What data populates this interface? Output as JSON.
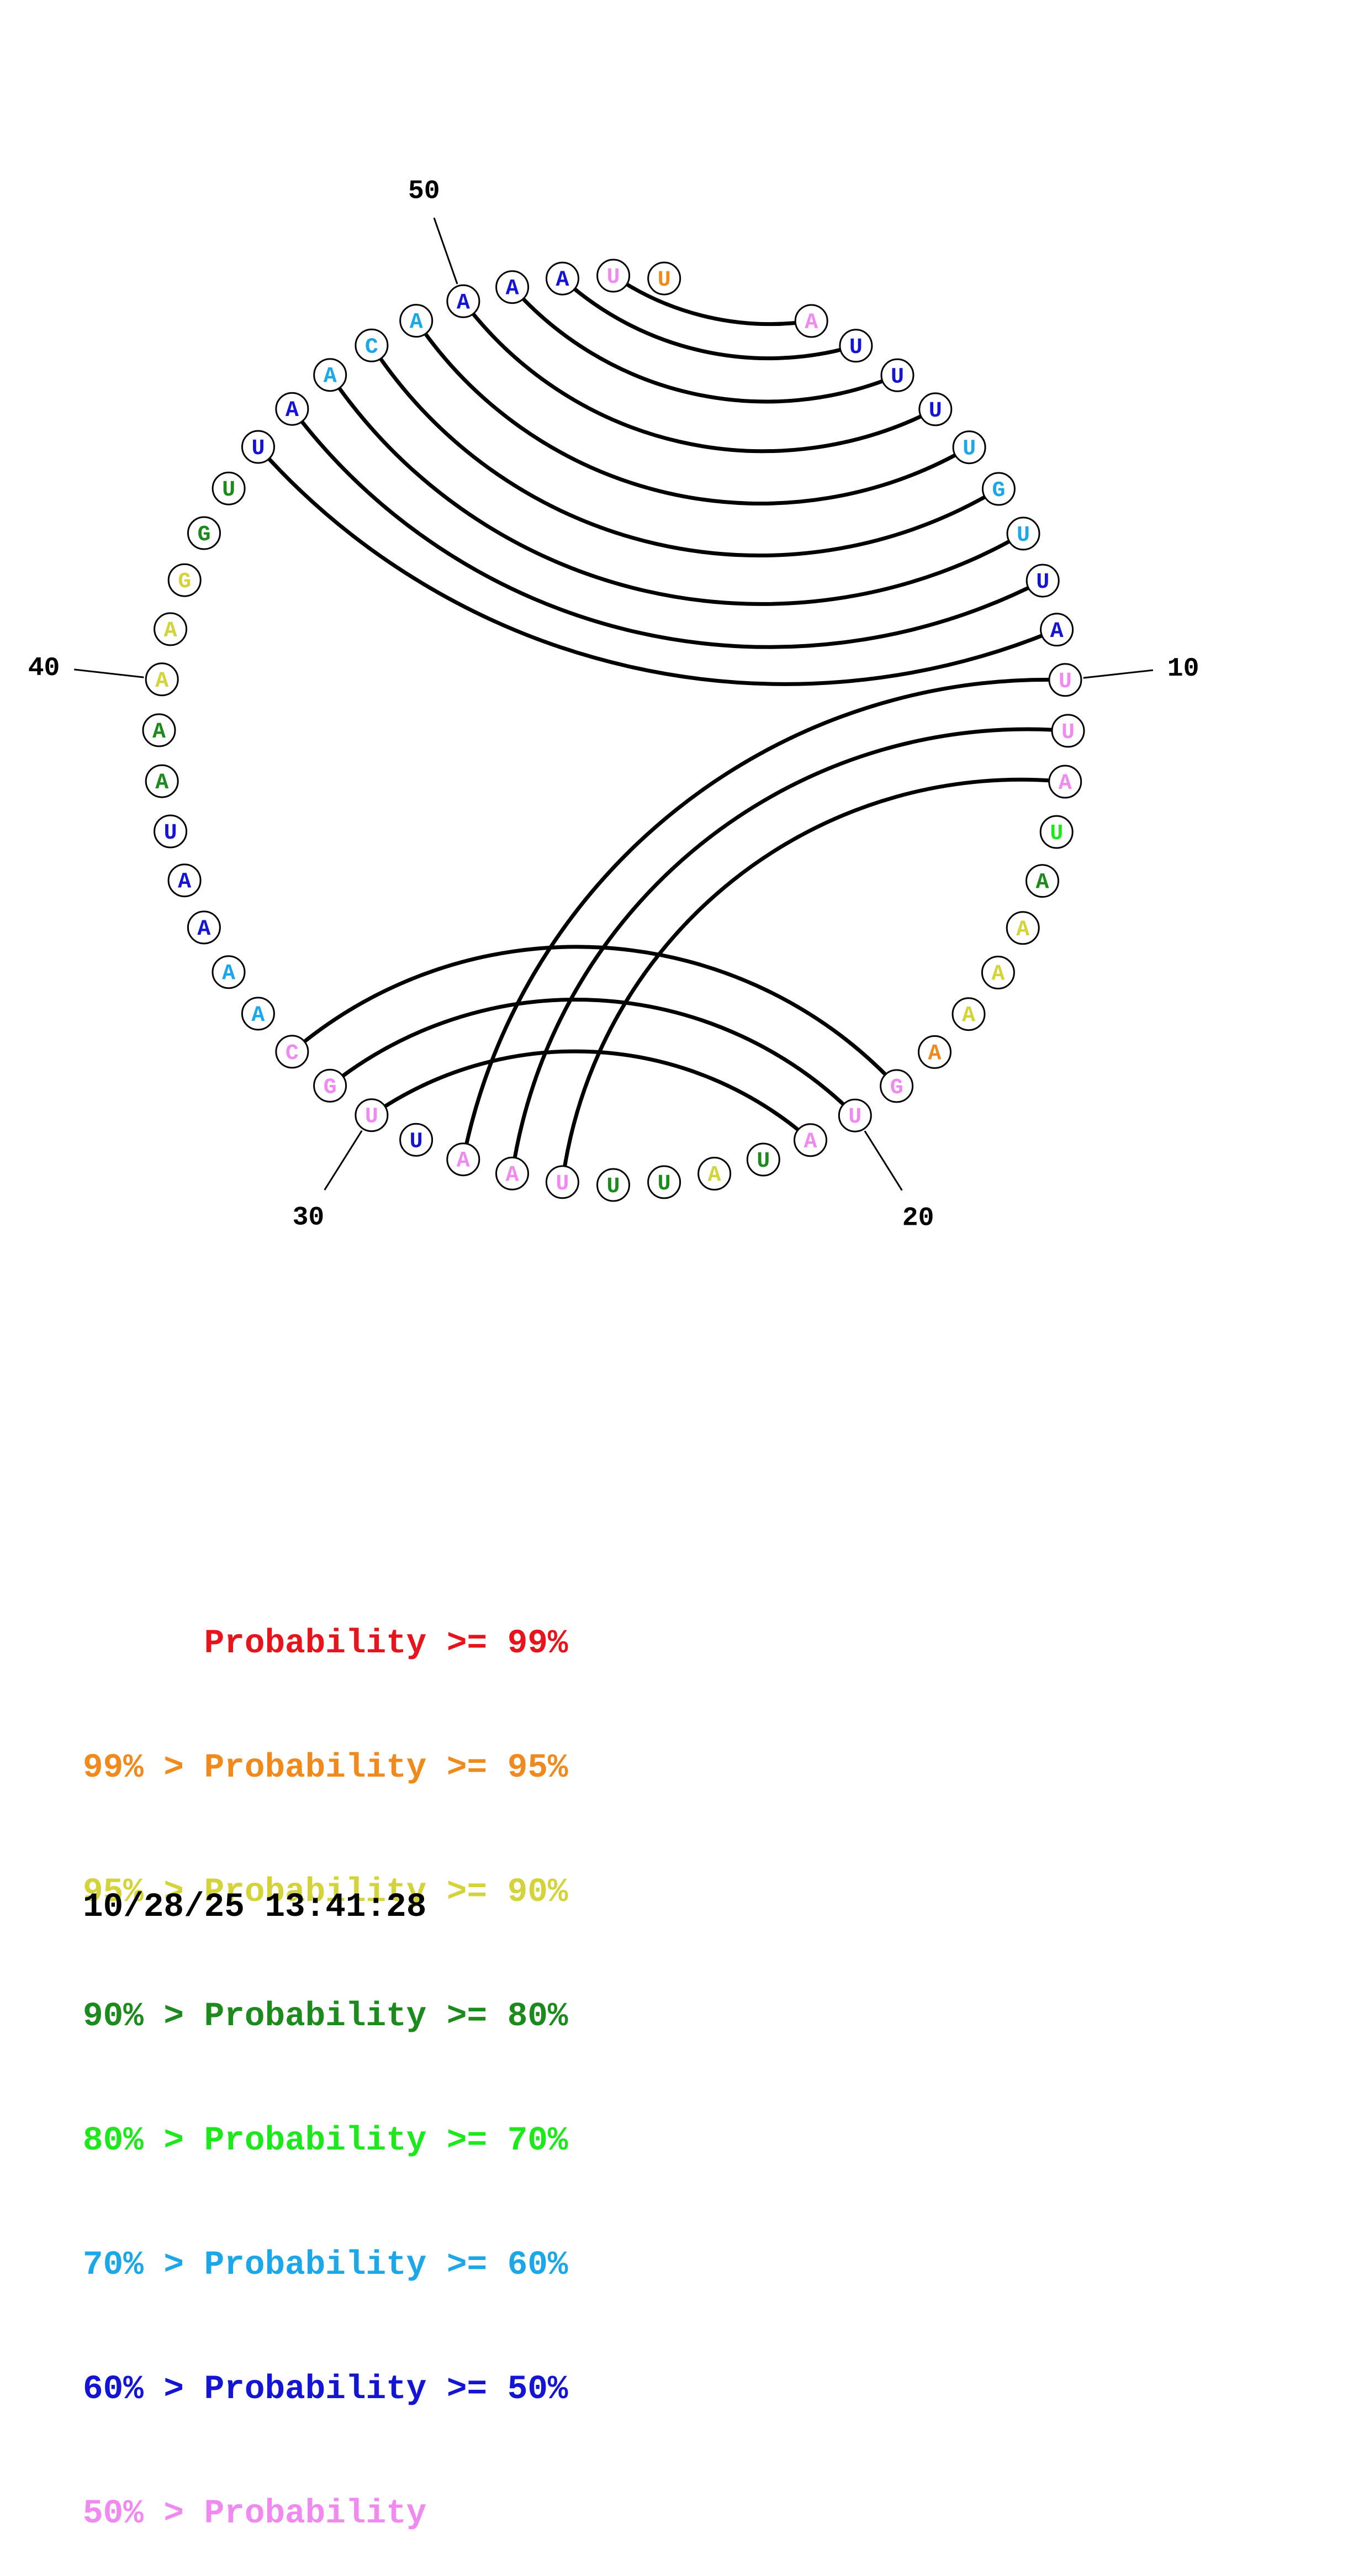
{
  "colors": {
    "p99": "#e8141c",
    "p95": "#f08a1c",
    "p90": "#d4d43a",
    "p80": "#1c8a1c",
    "p70": "#1ce81c",
    "p60": "#1ca8e8",
    "p50": "#1414d4",
    "plow": "#f08af0"
  },
  "nucleotides": [
    {
      "n": 1,
      "base": "A",
      "color": "#f08af0"
    },
    {
      "n": 2,
      "base": "U",
      "color": "#1414d4"
    },
    {
      "n": 3,
      "base": "U",
      "color": "#1414d4"
    },
    {
      "n": 4,
      "base": "U",
      "color": "#1414d4"
    },
    {
      "n": 5,
      "base": "U",
      "color": "#1ca8e8"
    },
    {
      "n": 6,
      "base": "G",
      "color": "#1ca8e8"
    },
    {
      "n": 7,
      "base": "U",
      "color": "#1ca8e8"
    },
    {
      "n": 8,
      "base": "U",
      "color": "#1414d4"
    },
    {
      "n": 9,
      "base": "A",
      "color": "#1414d4"
    },
    {
      "n": 10,
      "base": "U",
      "color": "#f08af0"
    },
    {
      "n": 11,
      "base": "U",
      "color": "#f08af0"
    },
    {
      "n": 12,
      "base": "A",
      "color": "#f08af0"
    },
    {
      "n": 13,
      "base": "U",
      "color": "#1ce81c"
    },
    {
      "n": 14,
      "base": "A",
      "color": "#1c8a1c"
    },
    {
      "n": 15,
      "base": "A",
      "color": "#d4d43a"
    },
    {
      "n": 16,
      "base": "A",
      "color": "#d4d43a"
    },
    {
      "n": 17,
      "base": "A",
      "color": "#d4d43a"
    },
    {
      "n": 18,
      "base": "A",
      "color": "#f08a1c"
    },
    {
      "n": 19,
      "base": "G",
      "color": "#f08af0"
    },
    {
      "n": 20,
      "base": "U",
      "color": "#f08af0"
    },
    {
      "n": 21,
      "base": "A",
      "color": "#f08af0"
    },
    {
      "n": 22,
      "base": "U",
      "color": "#1c8a1c"
    },
    {
      "n": 23,
      "base": "A",
      "color": "#d4d43a"
    },
    {
      "n": 24,
      "base": "U",
      "color": "#1c8a1c"
    },
    {
      "n": 25,
      "base": "U",
      "color": "#1c8a1c"
    },
    {
      "n": 26,
      "base": "U",
      "color": "#f08af0"
    },
    {
      "n": 27,
      "base": "A",
      "color": "#f08af0"
    },
    {
      "n": 28,
      "base": "A",
      "color": "#f08af0"
    },
    {
      "n": 29,
      "base": "U",
      "color": "#1414d4"
    },
    {
      "n": 30,
      "base": "U",
      "color": "#f08af0"
    },
    {
      "n": 31,
      "base": "G",
      "color": "#f08af0"
    },
    {
      "n": 32,
      "base": "C",
      "color": "#f08af0"
    },
    {
      "n": 33,
      "base": "A",
      "color": "#1ca8e8"
    },
    {
      "n": 34,
      "base": "A",
      "color": "#1ca8e8"
    },
    {
      "n": 35,
      "base": "A",
      "color": "#1414d4"
    },
    {
      "n": 36,
      "base": "A",
      "color": "#1414d4"
    },
    {
      "n": 37,
      "base": "U",
      "color": "#1414d4"
    },
    {
      "n": 38,
      "base": "A",
      "color": "#1c8a1c"
    },
    {
      "n": 39,
      "base": "A",
      "color": "#1c8a1c"
    },
    {
      "n": 40,
      "base": "A",
      "color": "#d4d43a"
    },
    {
      "n": 41,
      "base": "A",
      "color": "#d4d43a"
    },
    {
      "n": 42,
      "base": "G",
      "color": "#d4d43a"
    },
    {
      "n": 43,
      "base": "G",
      "color": "#1c8a1c"
    },
    {
      "n": 44,
      "base": "U",
      "color": "#1c8a1c"
    },
    {
      "n": 45,
      "base": "U",
      "color": "#1414d4"
    },
    {
      "n": 46,
      "base": "A",
      "color": "#1414d4"
    },
    {
      "n": 47,
      "base": "A",
      "color": "#1ca8e8"
    },
    {
      "n": 48,
      "base": "C",
      "color": "#1ca8e8"
    },
    {
      "n": 49,
      "base": "A",
      "color": "#1ca8e8"
    },
    {
      "n": 50,
      "base": "A",
      "color": "#1414d4"
    },
    {
      "n": 51,
      "base": "A",
      "color": "#1414d4"
    },
    {
      "n": 52,
      "base": "A",
      "color": "#1414d4"
    },
    {
      "n": 53,
      "base": "U",
      "color": "#f08af0"
    },
    {
      "n": 54,
      "base": "U",
      "color": "#f08a1c"
    }
  ],
  "pairs": [
    [
      1,
      53
    ],
    [
      2,
      52
    ],
    [
      3,
      51
    ],
    [
      4,
      50
    ],
    [
      5,
      49
    ],
    [
      6,
      48
    ],
    [
      7,
      47
    ],
    [
      8,
      46
    ],
    [
      9,
      45
    ],
    [
      10,
      28
    ],
    [
      11,
      27
    ],
    [
      12,
      26
    ],
    [
      19,
      32
    ],
    [
      20,
      31
    ],
    [
      21,
      30
    ]
  ],
  "ticks": [
    {
      "n": 10,
      "label": "10"
    },
    {
      "n": 20,
      "label": "20"
    },
    {
      "n": 30,
      "label": "30"
    },
    {
      "n": 40,
      "label": "40"
    },
    {
      "n": 50,
      "label": "50"
    }
  ],
  "legend": [
    {
      "text": "      Probability >= 99%",
      "color": "#e8141c"
    },
    {
      "text": "99% > Probability >= 95%",
      "color": "#f08a1c"
    },
    {
      "text": "95% > Probability >= 90%",
      "color": "#d4d43a"
    },
    {
      "text": "90% > Probability >= 80%",
      "color": "#1c8a1c"
    },
    {
      "text": "80% > Probability >= 70%",
      "color": "#1ce81c"
    },
    {
      "text": "70% > Probability >= 60%",
      "color": "#1ca8e8"
    },
    {
      "text": "60% > Probability >= 50%",
      "color": "#1414d4"
    },
    {
      "text": "50% > Probability",
      "color": "#f08af0"
    }
  ],
  "timestamp": "10/28/25 13:41:28"
}
